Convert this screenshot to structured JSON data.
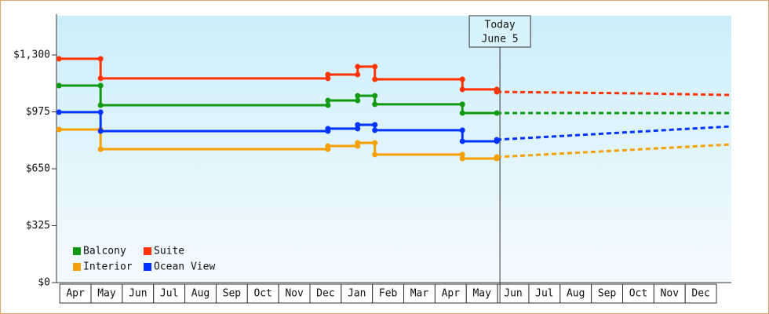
{
  "chart_data": {
    "type": "step-line",
    "categories": [
      "Apr",
      "May",
      "Jun",
      "Jul",
      "Aug",
      "Sep",
      "Oct",
      "Nov",
      "Dec",
      "Jan",
      "Feb",
      "Mar",
      "Apr",
      "May",
      "Jun",
      "Jul",
      "Aug",
      "Sep",
      "Oct",
      "Nov",
      "Dec"
    ],
    "xlim": [
      -0.08,
      21.5
    ],
    "ylim": [
      0,
      1524
    ],
    "yticks": [
      {
        "value": 0,
        "label": "$0"
      },
      {
        "value": 325,
        "label": "$325"
      },
      {
        "value": 650,
        "label": "$650"
      },
      {
        "value": 975,
        "label": "$975"
      },
      {
        "value": 1300,
        "label": "$1,300"
      }
    ],
    "today": {
      "x": 14.1,
      "label": [
        "Today",
        "June 5"
      ]
    },
    "legend": "bottom-left",
    "series": [
      {
        "name": "Balcony",
        "color": "#119911",
        "x": [
          0,
          1.33,
          1.33,
          8.6,
          8.6,
          9.55,
          9.55,
          10.1,
          10.1,
          12.9,
          12.9,
          14.0
        ],
        "values": [
          1125,
          1125,
          1013,
          1013,
          1040,
          1040,
          1067,
          1067,
          1018,
          1018,
          968,
          968
        ],
        "forecast_x": [
          14.0,
          21.5
        ],
        "forecast_values": [
          968,
          968
        ]
      },
      {
        "name": "Suite",
        "color": "#ff3300",
        "x": [
          0,
          1.33,
          1.33,
          8.6,
          8.6,
          9.55,
          9.55,
          10.1,
          10.1,
          12.9,
          12.9,
          14.0,
          14.0
        ],
        "values": [
          1278,
          1278,
          1166,
          1166,
          1188,
          1188,
          1233,
          1233,
          1161,
          1161,
          1103,
          1103,
          1089
        ],
        "forecast_x": [
          14.0,
          18.7,
          21.5
        ],
        "forecast_values": [
          1089,
          1080,
          1071
        ]
      },
      {
        "name": "Interior",
        "color": "#f5a000",
        "x": [
          0,
          1.33,
          1.33,
          8.6,
          8.6,
          9.55,
          9.55,
          10.1,
          10.1,
          12.9,
          12.9,
          14.0,
          14.0
        ],
        "values": [
          874,
          874,
          762,
          762,
          780,
          780,
          798,
          798,
          731,
          731,
          708,
          708,
          717
        ],
        "forecast_x": [
          14.0,
          21.5
        ],
        "forecast_values": [
          717,
          789
        ]
      },
      {
        "name": "Ocean View",
        "color": "#0033ff",
        "x": [
          0,
          1.33,
          1.33,
          8.6,
          8.6,
          9.55,
          9.55,
          10.1,
          10.1,
          12.9,
          12.9,
          14.0,
          14.0
        ],
        "values": [
          973,
          973,
          865,
          865,
          879,
          879,
          901,
          901,
          870,
          870,
          807,
          807,
          816
        ],
        "forecast_x": [
          14.0,
          21.5
        ],
        "forecast_values": [
          816,
          892
        ]
      }
    ]
  }
}
